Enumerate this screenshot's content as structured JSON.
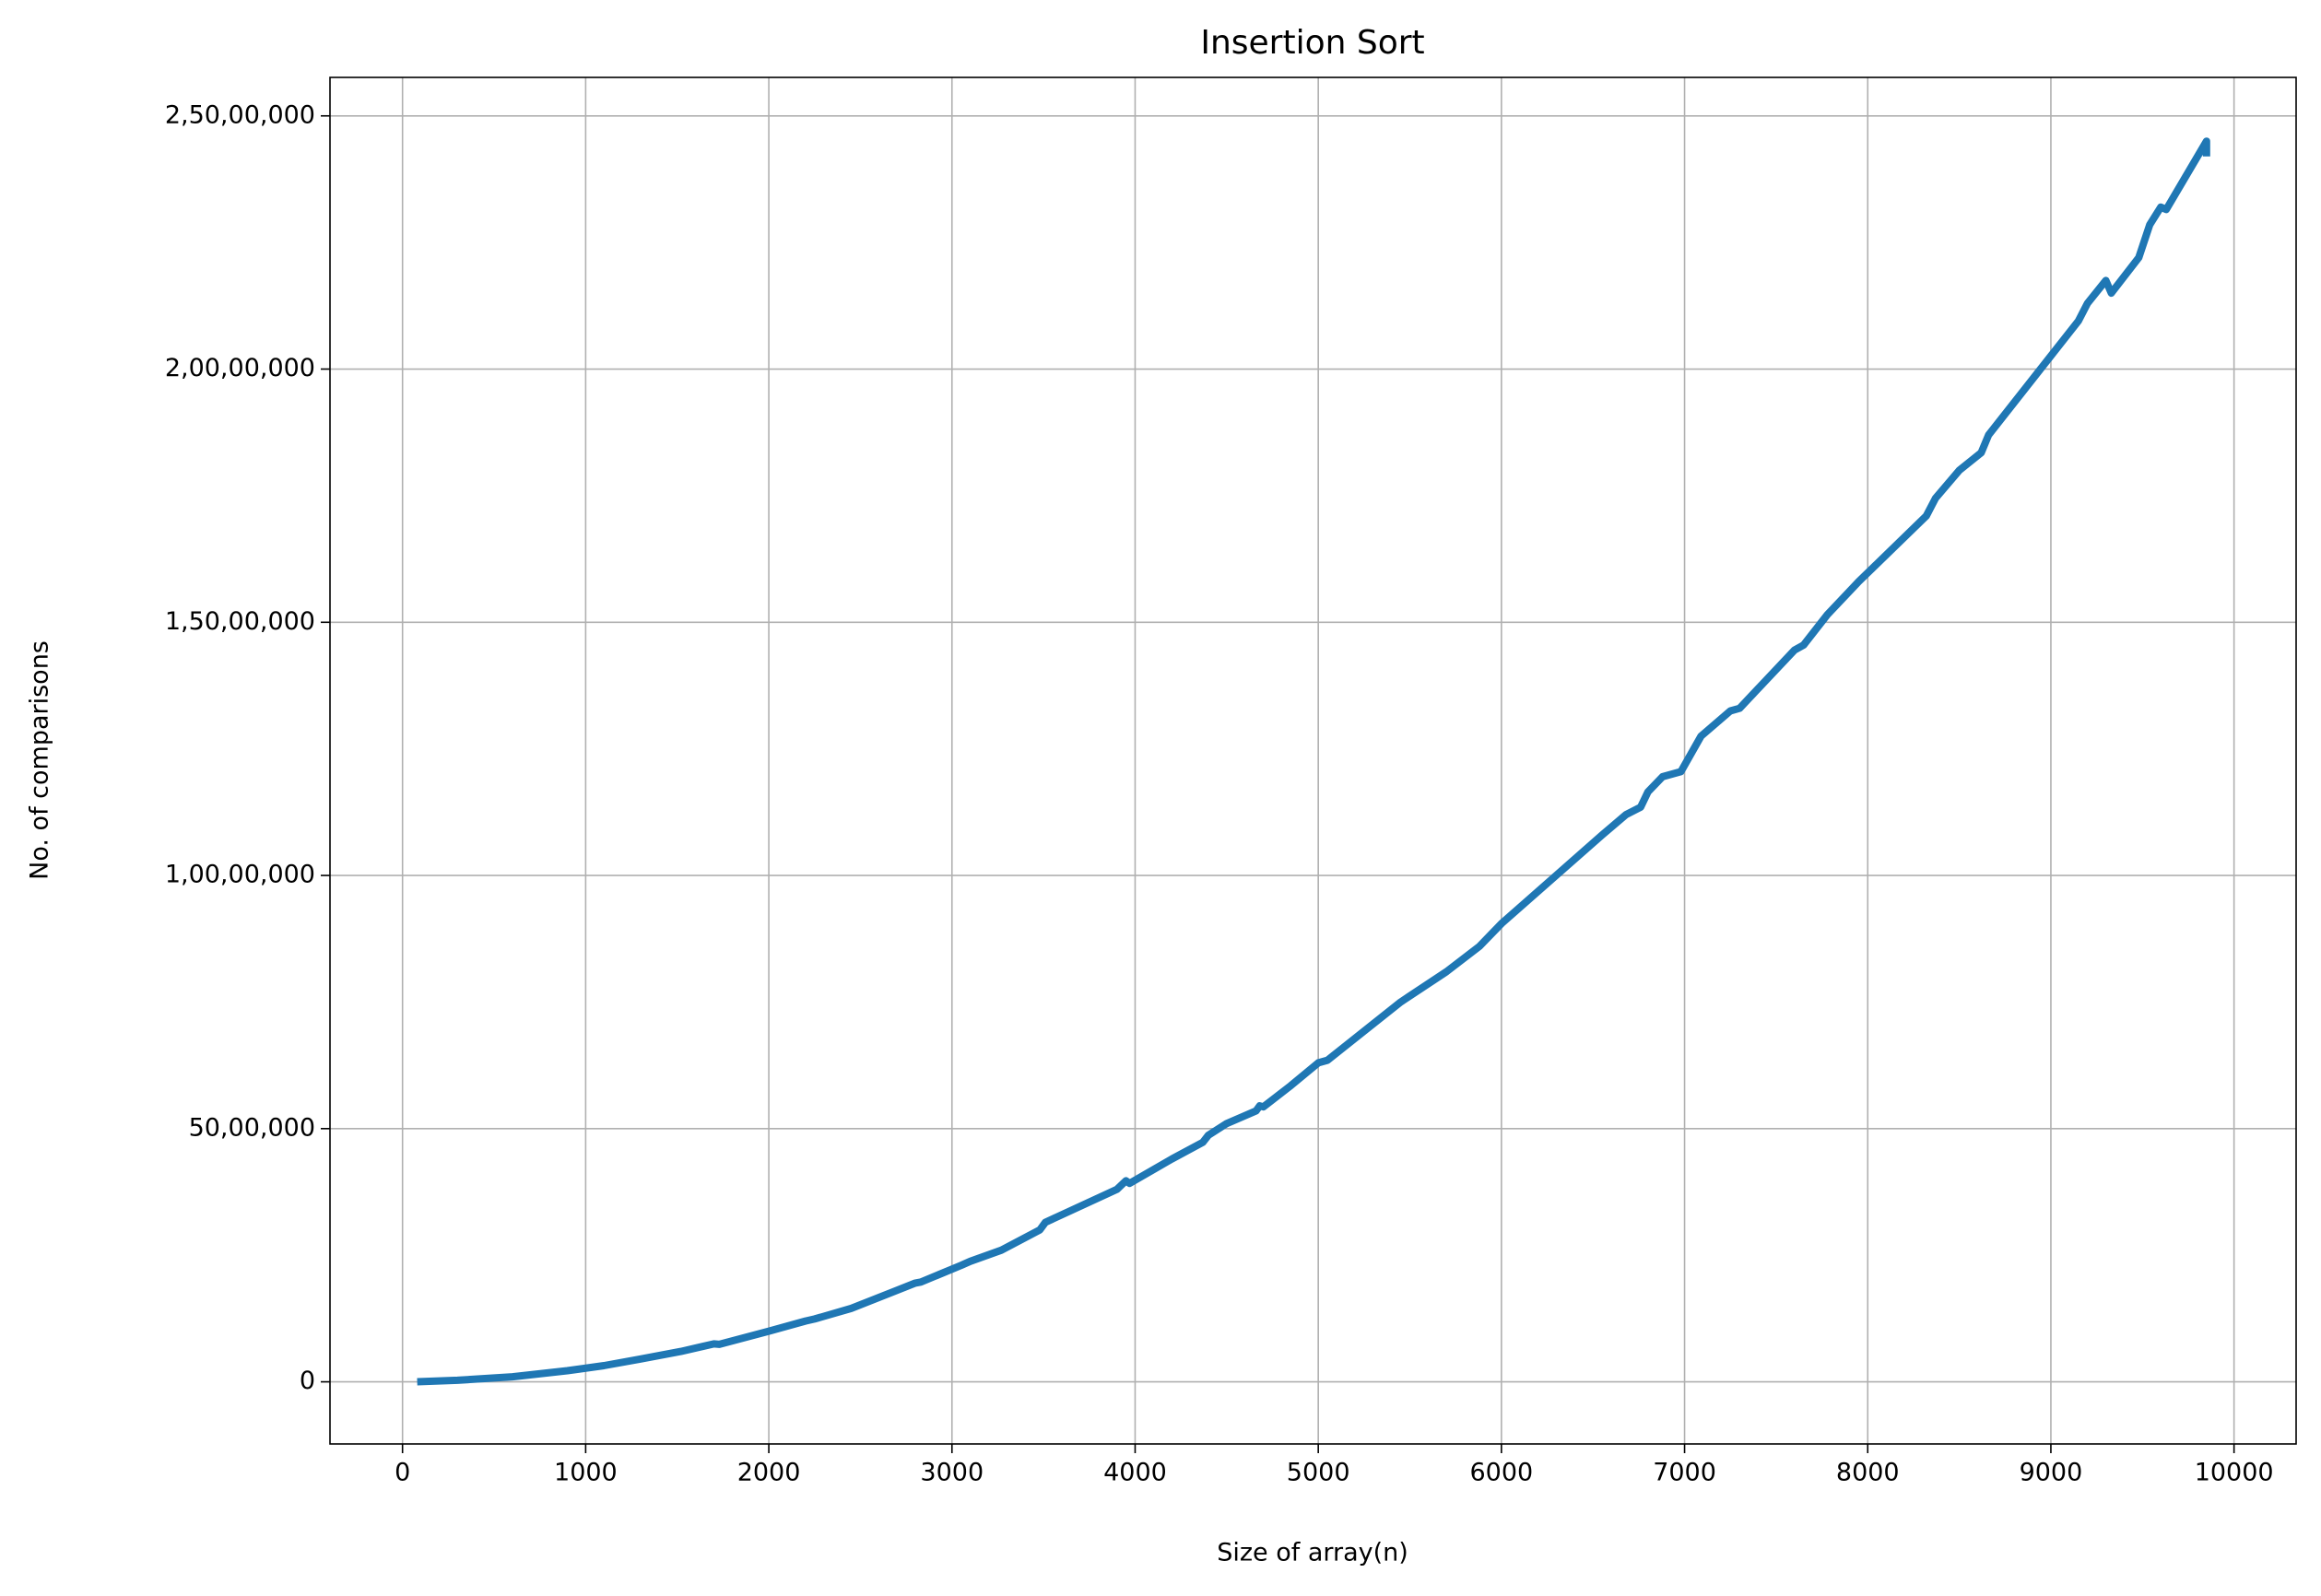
{
  "chart_data": {
    "type": "line",
    "title": "Insertion Sort",
    "x_label": "Size of array(n)",
    "y_label": "No. of comparisons",
    "grid": true,
    "xlim": [
      -396,
      10339
    ],
    "ylim": [
      -1227000,
      25760000
    ],
    "xticks": [
      0,
      1000,
      2000,
      3000,
      4000,
      5000,
      6000,
      7000,
      8000,
      9000,
      10000
    ],
    "yticks": [
      0,
      {
        "value": 5000000,
        "label": "50,00,000"
      },
      {
        "value": 10000000,
        "label": "1,00,00,000"
      },
      {
        "value": 15000000,
        "label": "1,50,00,000"
      },
      {
        "value": 20000000,
        "label": "2,00,00,000"
      },
      {
        "value": 25000000,
        "label": "2,50,00,000"
      }
    ],
    "x": [
      80,
      300,
      600,
      900,
      1100,
      1300,
      1520,
      1700,
      1730,
      2000,
      2200,
      2250,
      2450,
      2800,
      2830,
      3050,
      3100,
      3270,
      3480,
      3510,
      3900,
      3950,
      3970,
      4200,
      4370,
      4400,
      4500,
      4660,
      4680,
      4700,
      4850,
      5000,
      5050,
      5450,
      5700,
      5880,
      6000,
      6550,
      6680,
      6760,
      6800,
      6880,
      6980,
      7090,
      7250,
      7300,
      7600,
      7650,
      7780,
      7950,
      8320,
      8370,
      8500,
      8620,
      8660,
      9150,
      9200,
      9300,
      9330,
      9480,
      9540,
      9600,
      9630,
      9850,
      9850
    ],
    "series": [
      {
        "name": "Insertion Sort",
        "color": "#1f77b4",
        "values": [
          1600,
          30000,
          100000,
          220000,
          320000,
          450000,
          600000,
          750000,
          740000,
          1000000,
          1200000,
          1240000,
          1450000,
          1950000,
          1970000,
          2300000,
          2380000,
          2600000,
          3000000,
          3150000,
          3800000,
          3970000,
          3920000,
          4400000,
          4730000,
          4870000,
          5100000,
          5350000,
          5450000,
          5430000,
          5850000,
          6300000,
          6350000,
          7500000,
          8100000,
          8600000,
          9050000,
          10800000,
          11200000,
          11350000,
          11650000,
          11950000,
          12050000,
          12750000,
          13250000,
          13300000,
          14450000,
          14550000,
          15150000,
          15800000,
          17100000,
          17450000,
          18000000,
          18350000,
          18700000,
          20950000,
          21300000,
          21750000,
          21500000,
          22200000,
          22850000,
          23200000,
          23150000,
          24500000,
          24200000
        ]
      }
    ]
  }
}
